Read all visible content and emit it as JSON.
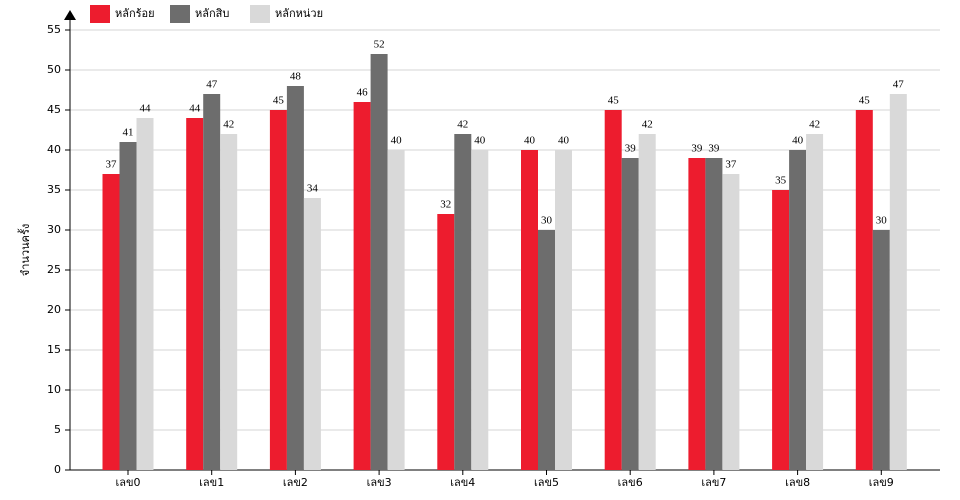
{
  "chart_data": {
    "type": "bar",
    "y_label": "จำนวนครั้ง",
    "categories": [
      "เลข0",
      "เลข1",
      "เลข2",
      "เลข3",
      "เลข4",
      "เลข5",
      "เลข6",
      "เลข7",
      "เลข8",
      "เลข9"
    ],
    "series": [
      {
        "name": "หลักร้อย",
        "color": "#ed1c2e",
        "values": [
          37,
          44,
          45,
          46,
          32,
          40,
          45,
          39,
          35,
          45
        ]
      },
      {
        "name": "หลักสิบ",
        "color": "#6d6d6d",
        "values": [
          41,
          47,
          48,
          52,
          42,
          30,
          39,
          39,
          40,
          30
        ]
      },
      {
        "name": "หลักหน่วย",
        "color": "#d9d9d9",
        "values": [
          44,
          42,
          34,
          40,
          40,
          40,
          42,
          37,
          42,
          47
        ]
      }
    ],
    "ylim": [
      0,
      55
    ],
    "yticks": [
      0,
      5,
      10,
      15,
      20,
      25,
      30,
      35,
      40,
      45,
      50,
      55
    ],
    "grid": true
  }
}
